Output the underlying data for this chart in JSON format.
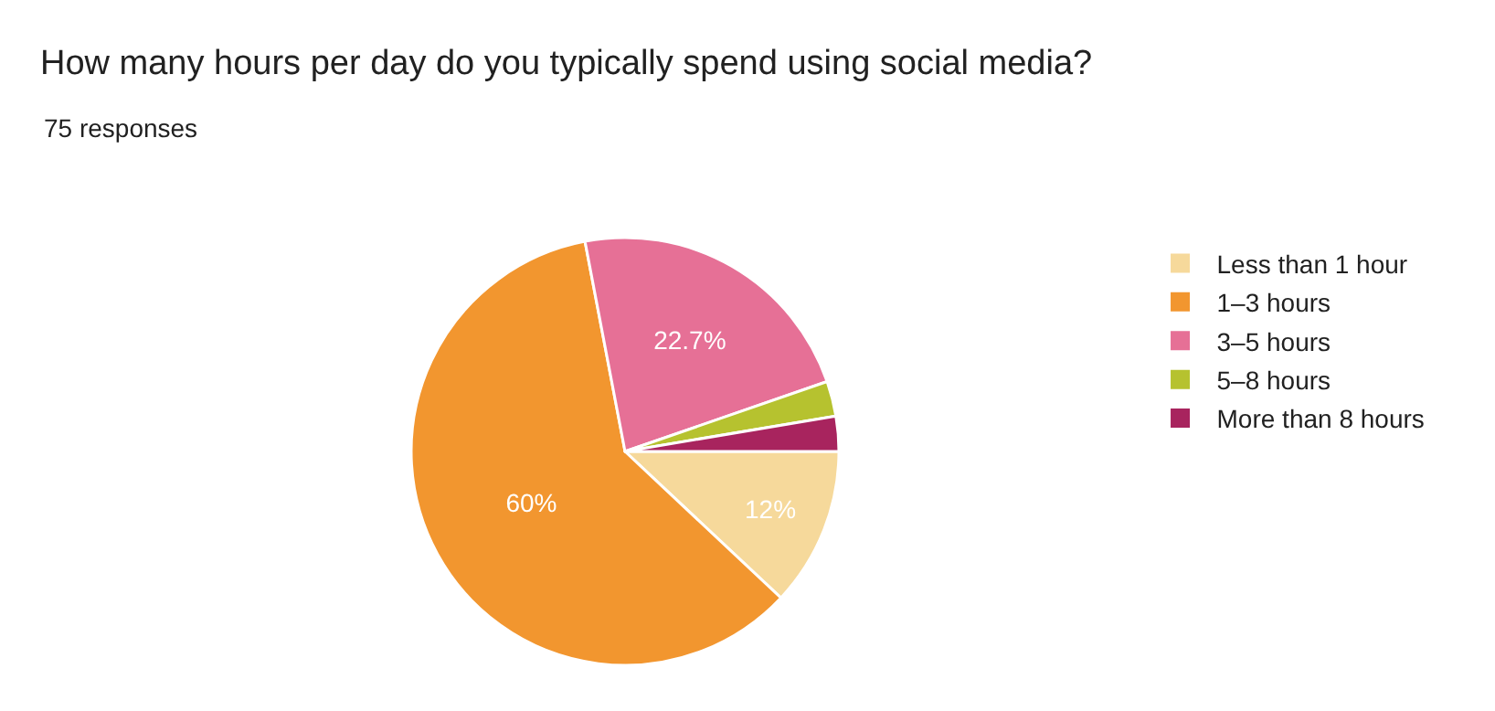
{
  "chart_data": {
    "type": "pie",
    "title": "How many hours per day do you typically spend using social media?",
    "subtitle": "75 responses",
    "categories": [
      "Less than 1 hour",
      "1–3 hours",
      "3–5 hours",
      "5–8 hours",
      "More than 8 hours"
    ],
    "values": [
      12,
      60,
      22.7,
      2.65,
      2.65
    ],
    "colors": [
      "#f6d99b",
      "#f2962f",
      "#e67096",
      "#b6c22f",
      "#a8245e"
    ],
    "value_labels": [
      "12%",
      "60%",
      "22.7%",
      null,
      null
    ],
    "legend": "right"
  }
}
